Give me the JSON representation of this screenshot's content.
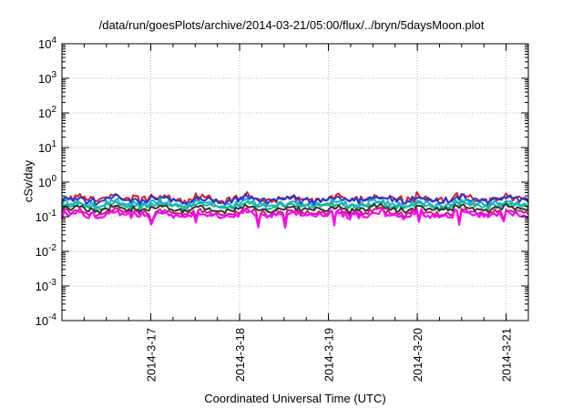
{
  "chart_data": {
    "type": "line",
    "title": "/data/run/goesPlots/archive/2014-03-21/05:00/flux/../bryn/5daysMoon.plot",
    "xlabel": "Coordinated Universal Time (UTC)",
    "ylabel": "cSv/day",
    "yscale": "log",
    "ylim": [
      0.0001,
      10000
    ],
    "xlim": [
      "2014-03-16 00:00",
      "2014-03-21 06:00"
    ],
    "y_ticks": [
      {
        "mantissa": "10",
        "exp": "-4",
        "value": 0.0001
      },
      {
        "mantissa": "10",
        "exp": "-3",
        "value": 0.001
      },
      {
        "mantissa": "10",
        "exp": "-2",
        "value": 0.01
      },
      {
        "mantissa": "10",
        "exp": "-1",
        "value": 0.1
      },
      {
        "mantissa": "10",
        "exp": "0",
        "value": 1
      },
      {
        "mantissa": "10",
        "exp": "1",
        "value": 10
      },
      {
        "mantissa": "10",
        "exp": "2",
        "value": 100
      },
      {
        "mantissa": "10",
        "exp": "3",
        "value": 1000
      },
      {
        "mantissa": "10",
        "exp": "4",
        "value": 10000
      }
    ],
    "x_ticks": [
      "2014-3-17",
      "2014-3-18",
      "2014-3-19",
      "2014-3-20",
      "2014-3-21"
    ],
    "grid": true,
    "series": [
      {
        "color": "#e01a1a",
        "base": 0.34,
        "spread": 0.16
      },
      {
        "color": "#1a3be0",
        "base": 0.31,
        "spread": 0.15
      },
      {
        "color": "#1ab0d8",
        "base": 0.24,
        "spread": 0.12
      },
      {
        "color": "#18b890",
        "base": 0.21,
        "spread": 0.11
      },
      {
        "color": "#333333",
        "base": 0.17,
        "spread": 0.1
      },
      {
        "color": "#d01a7a",
        "base": 0.135,
        "spread": 0.1
      },
      {
        "color": "#ff00ff",
        "base": 0.115,
        "spread": 0.13
      }
    ]
  }
}
